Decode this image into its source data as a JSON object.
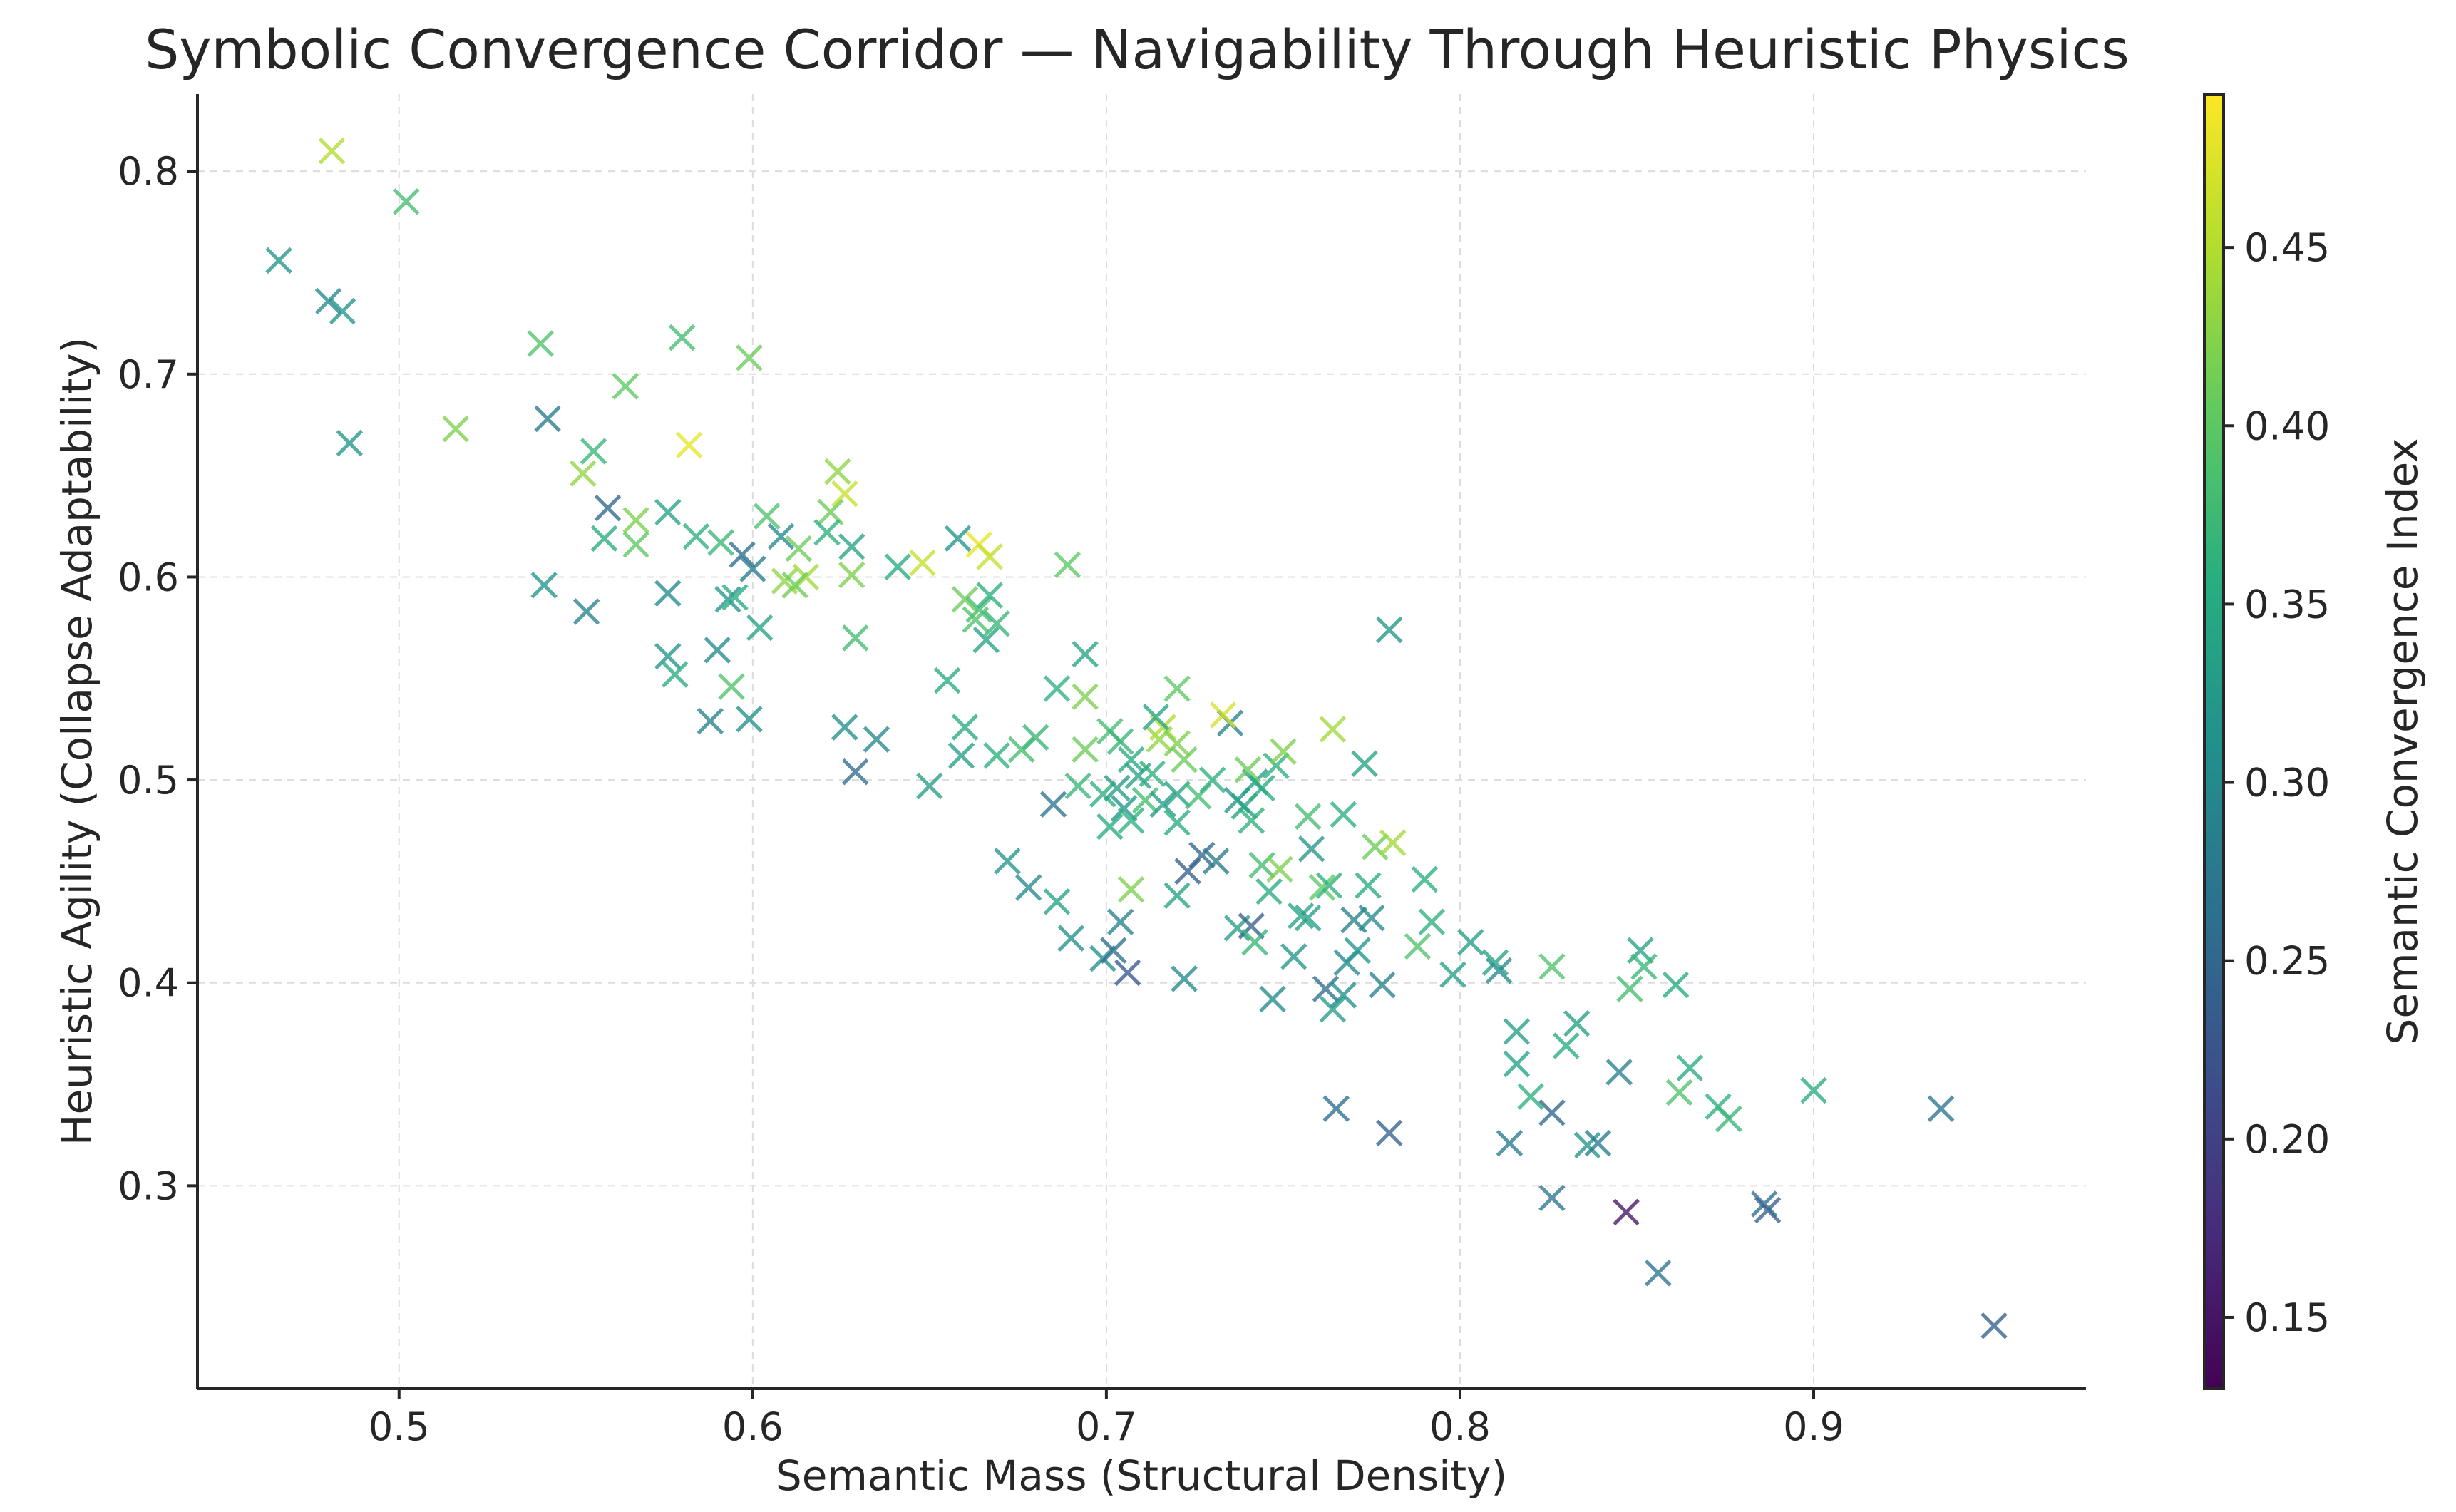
{
  "chart_data": {
    "type": "scatter",
    "title": "Symbolic Convergence Corridor — Navigability Through Heuristic Physics",
    "xlabel": "Semantic Mass (Structural Density)",
    "ylabel": "Heuristic Agility (Collapse Adaptability)",
    "xlim": [
      0.443,
      0.977
    ],
    "ylim": [
      0.2,
      0.838
    ],
    "xticks": [
      0.5,
      0.6,
      0.7,
      0.8,
      0.9
    ],
    "yticks": [
      0.3,
      0.4,
      0.5,
      0.6,
      0.7,
      0.8
    ],
    "xtick_labels": [
      "0.5",
      "0.6",
      "0.7",
      "0.8",
      "0.9"
    ],
    "ytick_labels": [
      "0.3",
      "0.4",
      "0.5",
      "0.6",
      "0.7",
      "0.8"
    ],
    "grid": true,
    "marker": "x",
    "colormap": "viridis",
    "colorbar": {
      "label": "Semantic Convergence Index",
      "range": [
        0.13,
        0.493
      ],
      "ticks": [
        0.15,
        0.2,
        0.25,
        0.3,
        0.35,
        0.4,
        0.45
      ],
      "tick_labels": [
        "0.15",
        "0.20",
        "0.25",
        "0.30",
        "0.35",
        "0.40",
        "0.45"
      ]
    },
    "points": [
      [
        0.481,
        0.81,
        0.45
      ],
      [
        0.502,
        0.785,
        0.38
      ],
      [
        0.466,
        0.756,
        0.32
      ],
      [
        0.48,
        0.736,
        0.3
      ],
      [
        0.484,
        0.731,
        0.32
      ],
      [
        0.486,
        0.666,
        0.32
      ],
      [
        0.54,
        0.715,
        0.39
      ],
      [
        0.58,
        0.718,
        0.38
      ],
      [
        0.599,
        0.708,
        0.41
      ],
      [
        0.564,
        0.694,
        0.4
      ],
      [
        0.516,
        0.673,
        0.42
      ],
      [
        0.542,
        0.678,
        0.28
      ],
      [
        0.582,
        0.665,
        0.48
      ],
      [
        0.555,
        0.662,
        0.37
      ],
      [
        0.552,
        0.651,
        0.43
      ],
      [
        0.559,
        0.634,
        0.25
      ],
      [
        0.576,
        0.632,
        0.34
      ],
      [
        0.567,
        0.628,
        0.42
      ],
      [
        0.558,
        0.619,
        0.35
      ],
      [
        0.567,
        0.616,
        0.4
      ],
      [
        0.584,
        0.62,
        0.36
      ],
      [
        0.591,
        0.617,
        0.37
      ],
      [
        0.604,
        0.63,
        0.39
      ],
      [
        0.608,
        0.62,
        0.3
      ],
      [
        0.597,
        0.611,
        0.26
      ],
      [
        0.6,
        0.604,
        0.28
      ],
      [
        0.624,
        0.652,
        0.43
      ],
      [
        0.626,
        0.641,
        0.46
      ],
      [
        0.622,
        0.632,
        0.41
      ],
      [
        0.628,
        0.615,
        0.34
      ],
      [
        0.621,
        0.622,
        0.36
      ],
      [
        0.613,
        0.614,
        0.41
      ],
      [
        0.609,
        0.598,
        0.43
      ],
      [
        0.615,
        0.6,
        0.44
      ],
      [
        0.612,
        0.596,
        0.41
      ],
      [
        0.628,
        0.601,
        0.42
      ],
      [
        0.641,
        0.605,
        0.35
      ],
      [
        0.648,
        0.607,
        0.46
      ],
      [
        0.658,
        0.619,
        0.32
      ],
      [
        0.664,
        0.616,
        0.48
      ],
      [
        0.667,
        0.61,
        0.46
      ],
      [
        0.66,
        0.589,
        0.41
      ],
      [
        0.664,
        0.584,
        0.38
      ],
      [
        0.667,
        0.591,
        0.36
      ],
      [
        0.663,
        0.579,
        0.39
      ],
      [
        0.669,
        0.577,
        0.37
      ],
      [
        0.666,
        0.569,
        0.34
      ],
      [
        0.689,
        0.606,
        0.4
      ],
      [
        0.541,
        0.596,
        0.32
      ],
      [
        0.576,
        0.592,
        0.3
      ],
      [
        0.553,
        0.583,
        0.29
      ],
      [
        0.593,
        0.589,
        0.32
      ],
      [
        0.595,
        0.59,
        0.35
      ],
      [
        0.602,
        0.575,
        0.34
      ],
      [
        0.59,
        0.564,
        0.3
      ],
      [
        0.576,
        0.561,
        0.32
      ],
      [
        0.578,
        0.552,
        0.35
      ],
      [
        0.594,
        0.546,
        0.39
      ],
      [
        0.588,
        0.529,
        0.29
      ],
      [
        0.599,
        0.53,
        0.31
      ],
      [
        0.629,
        0.57,
        0.38
      ],
      [
        0.655,
        0.549,
        0.35
      ],
      [
        0.694,
        0.562,
        0.34
      ],
      [
        0.626,
        0.526,
        0.31
      ],
      [
        0.635,
        0.52,
        0.3
      ],
      [
        0.66,
        0.526,
        0.35
      ],
      [
        0.629,
        0.504,
        0.26
      ],
      [
        0.65,
        0.497,
        0.33
      ],
      [
        0.659,
        0.512,
        0.33
      ],
      [
        0.669,
        0.512,
        0.36
      ],
      [
        0.676,
        0.515,
        0.38
      ],
      [
        0.68,
        0.521,
        0.37
      ],
      [
        0.686,
        0.545,
        0.36
      ],
      [
        0.694,
        0.541,
        0.42
      ],
      [
        0.694,
        0.515,
        0.41
      ],
      [
        0.685,
        0.488,
        0.27
      ],
      [
        0.692,
        0.497,
        0.37
      ],
      [
        0.699,
        0.493,
        0.36
      ],
      [
        0.701,
        0.524,
        0.38
      ],
      [
        0.704,
        0.519,
        0.37
      ],
      [
        0.707,
        0.51,
        0.35
      ],
      [
        0.709,
        0.502,
        0.34
      ],
      [
        0.703,
        0.496,
        0.33
      ],
      [
        0.705,
        0.486,
        0.32
      ],
      [
        0.707,
        0.48,
        0.36
      ],
      [
        0.701,
        0.477,
        0.35
      ],
      [
        0.711,
        0.49,
        0.38
      ],
      [
        0.715,
        0.52,
        0.43
      ],
      [
        0.716,
        0.526,
        0.45
      ],
      [
        0.72,
        0.545,
        0.4
      ],
      [
        0.714,
        0.531,
        0.34
      ],
      [
        0.72,
        0.518,
        0.42
      ],
      [
        0.722,
        0.51,
        0.41
      ],
      [
        0.713,
        0.503,
        0.36
      ],
      [
        0.72,
        0.493,
        0.34
      ],
      [
        0.716,
        0.488,
        0.33
      ],
      [
        0.72,
        0.479,
        0.35
      ],
      [
        0.726,
        0.492,
        0.38
      ],
      [
        0.73,
        0.5,
        0.36
      ],
      [
        0.735,
        0.528,
        0.29
      ],
      [
        0.733,
        0.532,
        0.47
      ],
      [
        0.737,
        0.49,
        0.32
      ],
      [
        0.739,
        0.487,
        0.34
      ],
      [
        0.742,
        0.499,
        0.33
      ],
      [
        0.74,
        0.505,
        0.41
      ],
      [
        0.741,
        0.48,
        0.36
      ],
      [
        0.744,
        0.496,
        0.35
      ],
      [
        0.748,
        0.507,
        0.36
      ],
      [
        0.75,
        0.514,
        0.42
      ],
      [
        0.764,
        0.525,
        0.44
      ],
      [
        0.773,
        0.508,
        0.34
      ],
      [
        0.757,
        0.482,
        0.38
      ],
      [
        0.767,
        0.483,
        0.36
      ],
      [
        0.78,
        0.574,
        0.32
      ],
      [
        0.672,
        0.46,
        0.32
      ],
      [
        0.678,
        0.447,
        0.3
      ],
      [
        0.686,
        0.44,
        0.34
      ],
      [
        0.699,
        0.412,
        0.31
      ],
      [
        0.69,
        0.422,
        0.31
      ],
      [
        0.702,
        0.416,
        0.26
      ],
      [
        0.704,
        0.43,
        0.29
      ],
      [
        0.707,
        0.446,
        0.42
      ],
      [
        0.706,
        0.405,
        0.23
      ],
      [
        0.72,
        0.443,
        0.34
      ],
      [
        0.723,
        0.455,
        0.24
      ],
      [
        0.727,
        0.463,
        0.25
      ],
      [
        0.731,
        0.46,
        0.28
      ],
      [
        0.722,
        0.402,
        0.3
      ],
      [
        0.737,
        0.427,
        0.33
      ],
      [
        0.741,
        0.428,
        0.24
      ],
      [
        0.742,
        0.42,
        0.37
      ],
      [
        0.744,
        0.458,
        0.38
      ],
      [
        0.749,
        0.456,
        0.42
      ],
      [
        0.746,
        0.445,
        0.35
      ],
      [
        0.753,
        0.413,
        0.32
      ],
      [
        0.755,
        0.433,
        0.34
      ],
      [
        0.758,
        0.466,
        0.32
      ],
      [
        0.761,
        0.447,
        0.4
      ],
      [
        0.763,
        0.448,
        0.36
      ],
      [
        0.757,
        0.432,
        0.33
      ],
      [
        0.768,
        0.41,
        0.3
      ],
      [
        0.77,
        0.431,
        0.29
      ],
      [
        0.775,
        0.432,
        0.3
      ],
      [
        0.771,
        0.416,
        0.32
      ],
      [
        0.776,
        0.467,
        0.41
      ],
      [
        0.781,
        0.469,
        0.44
      ],
      [
        0.774,
        0.448,
        0.35
      ],
      [
        0.747,
        0.392,
        0.3
      ],
      [
        0.762,
        0.397,
        0.26
      ],
      [
        0.764,
        0.387,
        0.33
      ],
      [
        0.767,
        0.394,
        0.31
      ],
      [
        0.778,
        0.399,
        0.29
      ],
      [
        0.788,
        0.418,
        0.39
      ],
      [
        0.79,
        0.451,
        0.36
      ],
      [
        0.792,
        0.43,
        0.36
      ],
      [
        0.798,
        0.404,
        0.33
      ],
      [
        0.803,
        0.42,
        0.33
      ],
      [
        0.81,
        0.41,
        0.34
      ],
      [
        0.811,
        0.406,
        0.3
      ],
      [
        0.826,
        0.408,
        0.39
      ],
      [
        0.848,
        0.397,
        0.38
      ],
      [
        0.851,
        0.416,
        0.34
      ],
      [
        0.852,
        0.408,
        0.37
      ],
      [
        0.861,
        0.399,
        0.35
      ],
      [
        0.765,
        0.338,
        0.26
      ],
      [
        0.78,
        0.326,
        0.24
      ],
      [
        0.816,
        0.376,
        0.33
      ],
      [
        0.816,
        0.36,
        0.34
      ],
      [
        0.82,
        0.344,
        0.36
      ],
      [
        0.826,
        0.336,
        0.25
      ],
      [
        0.83,
        0.369,
        0.35
      ],
      [
        0.833,
        0.38,
        0.33
      ],
      [
        0.836,
        0.32,
        0.32
      ],
      [
        0.839,
        0.321,
        0.28
      ],
      [
        0.845,
        0.356,
        0.29
      ],
      [
        0.814,
        0.321,
        0.28
      ],
      [
        0.826,
        0.294,
        0.27
      ],
      [
        0.847,
        0.287,
        0.15
      ],
      [
        0.856,
        0.257,
        0.27
      ],
      [
        0.862,
        0.346,
        0.39
      ],
      [
        0.865,
        0.358,
        0.35
      ],
      [
        0.873,
        0.339,
        0.36
      ],
      [
        0.876,
        0.333,
        0.37
      ],
      [
        0.9,
        0.347,
        0.35
      ],
      [
        0.886,
        0.291,
        0.26
      ],
      [
        0.887,
        0.288,
        0.24
      ],
      [
        0.936,
        0.338,
        0.27
      ],
      [
        0.951,
        0.231,
        0.24
      ]
    ]
  }
}
